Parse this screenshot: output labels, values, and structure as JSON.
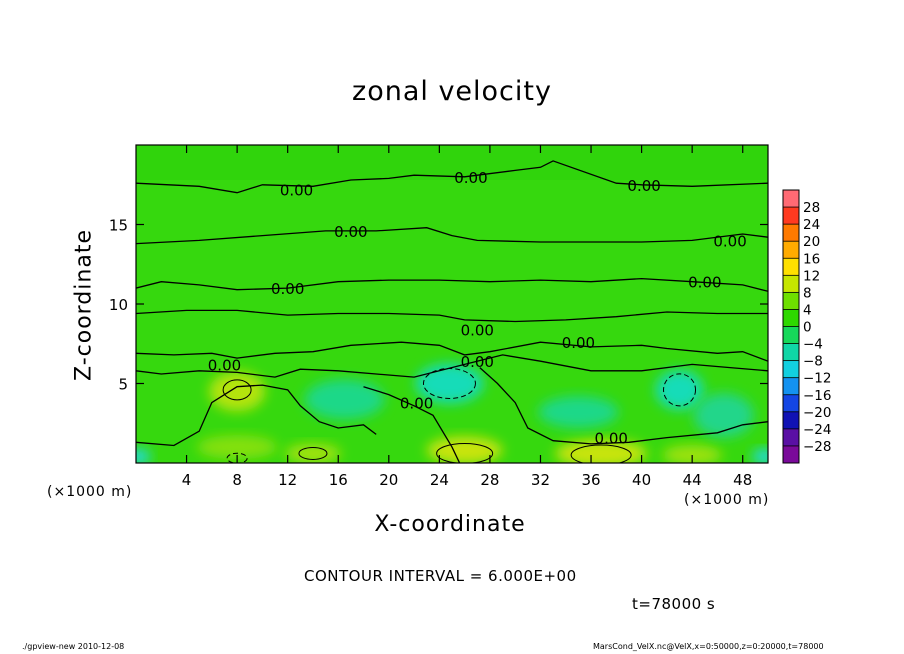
{
  "chart_data": {
    "type": "heatmap",
    "title": "zonal velocity",
    "xlabel": "X-coordinate",
    "ylabel": "Z-coordinate",
    "x_unit_label": "(×1000 m)",
    "xlim": [
      0,
      50
    ],
    "ylim": [
      0,
      20
    ],
    "x_ticks": [
      4,
      8,
      12,
      16,
      20,
      24,
      28,
      32,
      36,
      40,
      44,
      48
    ],
    "y_ticks": [
      5,
      10,
      15
    ],
    "contour_label": "0.00",
    "contour_interval_text": "CONTOUR INTERVAL = 6.000E+00",
    "time_text": "t=78000 s",
    "colorbar": {
      "levels": [
        28,
        24,
        20,
        16,
        12,
        8,
        4,
        0,
        -4,
        -8,
        -12,
        -16,
        -20,
        -24,
        -28
      ],
      "colors": [
        "#ff6a74",
        "#ff3a20",
        "#ff7a00",
        "#ffab00",
        "#ffe000",
        "#c6e600",
        "#6ee000",
        "#2ed800",
        "#16d85a",
        "#10d6a6",
        "#12d0e0",
        "#1492f0",
        "#1446e4",
        "#1012b4",
        "#5a10a4",
        "#7a0a9a"
      ]
    },
    "contours": [
      {
        "label": "0.00",
        "label_positions": [
          [
            12.7,
            17.2
          ],
          [
            26.5,
            18.0
          ],
          [
            40.2,
            17.5
          ],
          [
            17.0,
            14.6
          ],
          [
            47.0,
            14.0
          ],
          [
            12.0,
            11.0
          ],
          [
            45.0,
            11.4
          ],
          [
            27.0,
            8.4
          ],
          [
            35.0,
            7.6
          ],
          [
            7.0,
            6.2
          ],
          [
            27.0,
            6.4
          ],
          [
            22.2,
            3.8
          ],
          [
            37.6,
            1.6
          ]
        ]
      }
    ],
    "features": [
      {
        "type": "positive_maximum",
        "x": 8.0,
        "z": 4.5
      },
      {
        "type": "negative_minimum",
        "x": 24.8,
        "z": 5.0
      },
      {
        "type": "negative_minimum",
        "x": 43.0,
        "z": 4.6
      }
    ]
  },
  "footer": {
    "left": "./gpview-new   2010-12-08",
    "right": "MarsCond_VelX.nc@VelX,x=0:50000,z=0:20000,t=78000"
  }
}
